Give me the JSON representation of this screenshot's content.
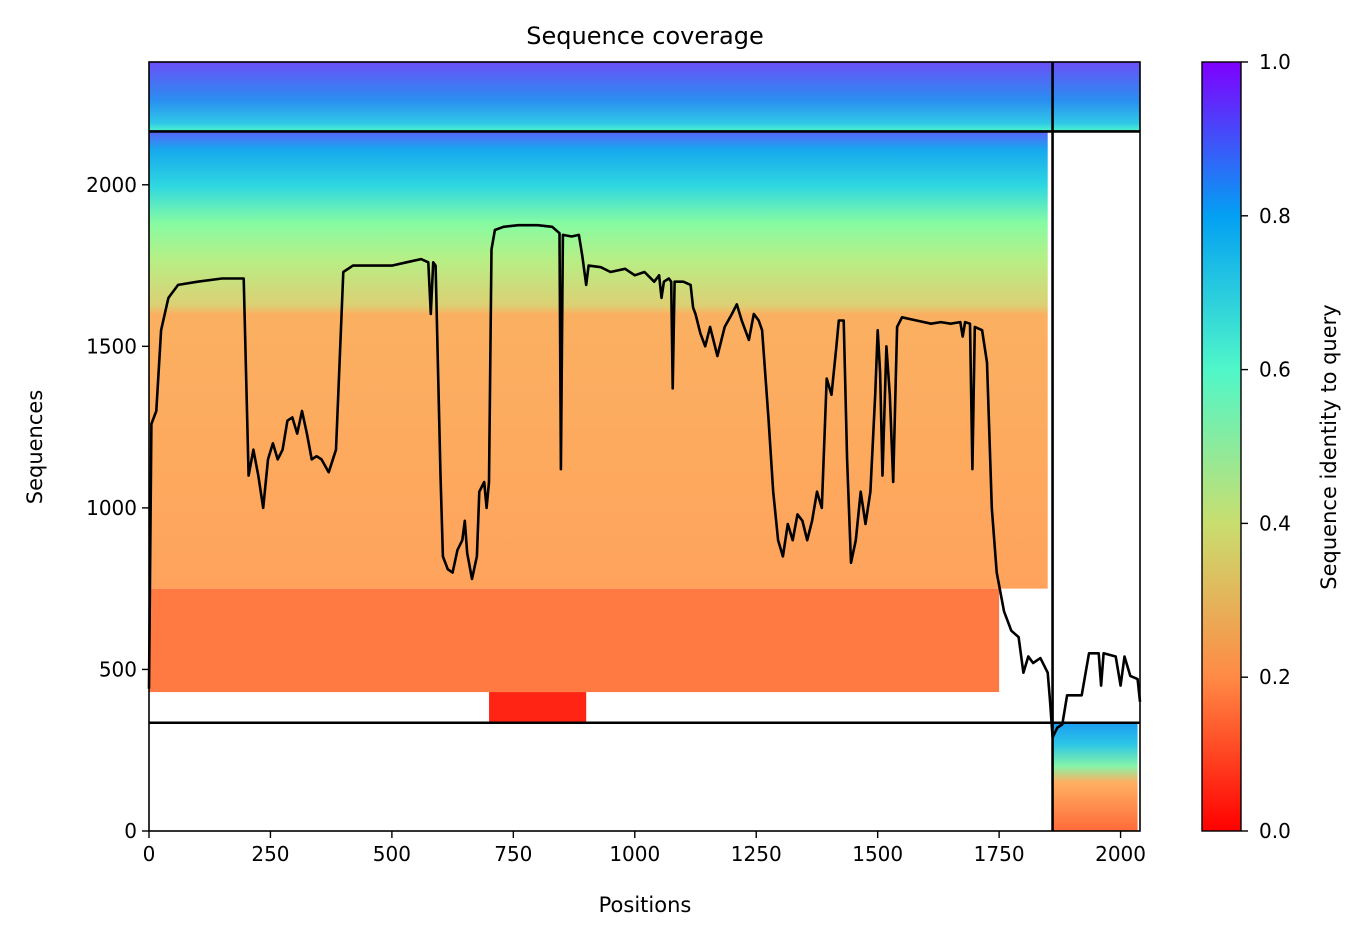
{
  "chart_data": {
    "type": "heatmap",
    "title": "Sequence coverage",
    "xlabel": "Positions",
    "ylabel": "Sequences",
    "xlim": [
      0,
      2040
    ],
    "ylim": [
      0,
      2380
    ],
    "xticks": [
      0,
      250,
      500,
      750,
      1000,
      1250,
      1500,
      1750,
      2000
    ],
    "yticks": [
      0,
      500,
      1000,
      1500,
      2000
    ],
    "grid": false,
    "colorbar": {
      "label": "Sequence identity to query",
      "colormap": "rainbow_r",
      "range": [
        0.0,
        1.0
      ],
      "ticks": [
        "0.0",
        "0.2",
        "0.4",
        "0.6",
        "0.8",
        "1.0"
      ],
      "colors": [
        "#ff0000",
        "#ff8a45",
        "#c9de6f",
        "#4ff7c9",
        "#03a0f3",
        "#7f00ff"
      ]
    },
    "boundaries": {
      "x": 1860,
      "y_low": 335,
      "y_high": 2165
    },
    "coverage_line": [
      [
        0,
        440
      ],
      [
        5,
        1260
      ],
      [
        15,
        1300
      ],
      [
        25,
        1550
      ],
      [
        40,
        1650
      ],
      [
        60,
        1690
      ],
      [
        100,
        1700
      ],
      [
        150,
        1710
      ],
      [
        195,
        1710
      ],
      [
        205,
        1100
      ],
      [
        215,
        1180
      ],
      [
        225,
        1100
      ],
      [
        235,
        1000
      ],
      [
        245,
        1150
      ],
      [
        255,
        1200
      ],
      [
        265,
        1150
      ],
      [
        275,
        1180
      ],
      [
        285,
        1270
      ],
      [
        295,
        1280
      ],
      [
        305,
        1230
      ],
      [
        315,
        1300
      ],
      [
        325,
        1230
      ],
      [
        335,
        1150
      ],
      [
        345,
        1160
      ],
      [
        355,
        1150
      ],
      [
        370,
        1110
      ],
      [
        385,
        1180
      ],
      [
        400,
        1730
      ],
      [
        420,
        1750
      ],
      [
        450,
        1750
      ],
      [
        500,
        1750
      ],
      [
        530,
        1760
      ],
      [
        560,
        1770
      ],
      [
        575,
        1760
      ],
      [
        580,
        1600
      ],
      [
        585,
        1760
      ],
      [
        590,
        1750
      ],
      [
        600,
        1100
      ],
      [
        605,
        850
      ],
      [
        615,
        810
      ],
      [
        625,
        800
      ],
      [
        635,
        870
      ],
      [
        645,
        900
      ],
      [
        650,
        960
      ],
      [
        655,
        860
      ],
      [
        665,
        780
      ],
      [
        675,
        850
      ],
      [
        680,
        1050
      ],
      [
        690,
        1080
      ],
      [
        695,
        1000
      ],
      [
        700,
        1080
      ],
      [
        705,
        1800
      ],
      [
        712,
        1860
      ],
      [
        730,
        1870
      ],
      [
        760,
        1875
      ],
      [
        800,
        1875
      ],
      [
        830,
        1870
      ],
      [
        845,
        1850
      ],
      [
        848,
        1120
      ],
      [
        852,
        1845
      ],
      [
        870,
        1840
      ],
      [
        885,
        1845
      ],
      [
        892,
        1780
      ],
      [
        900,
        1690
      ],
      [
        905,
        1750
      ],
      [
        930,
        1745
      ],
      [
        950,
        1730
      ],
      [
        980,
        1740
      ],
      [
        1000,
        1720
      ],
      [
        1020,
        1730
      ],
      [
        1040,
        1700
      ],
      [
        1050,
        1720
      ],
      [
        1055,
        1650
      ],
      [
        1060,
        1700
      ],
      [
        1070,
        1710
      ],
      [
        1075,
        1700
      ],
      [
        1078,
        1370
      ],
      [
        1082,
        1700
      ],
      [
        1100,
        1700
      ],
      [
        1115,
        1690
      ],
      [
        1120,
        1620
      ],
      [
        1125,
        1600
      ],
      [
        1135,
        1540
      ],
      [
        1145,
        1500
      ],
      [
        1155,
        1560
      ],
      [
        1170,
        1470
      ],
      [
        1185,
        1560
      ],
      [
        1200,
        1600
      ],
      [
        1210,
        1630
      ],
      [
        1220,
        1580
      ],
      [
        1235,
        1520
      ],
      [
        1245,
        1600
      ],
      [
        1255,
        1580
      ],
      [
        1262,
        1550
      ],
      [
        1275,
        1280
      ],
      [
        1285,
        1050
      ],
      [
        1295,
        900
      ],
      [
        1305,
        850
      ],
      [
        1315,
        950
      ],
      [
        1325,
        900
      ],
      [
        1335,
        980
      ],
      [
        1345,
        960
      ],
      [
        1355,
        900
      ],
      [
        1365,
        960
      ],
      [
        1375,
        1050
      ],
      [
        1385,
        1000
      ],
      [
        1395,
        1400
      ],
      [
        1405,
        1350
      ],
      [
        1415,
        1500
      ],
      [
        1420,
        1580
      ],
      [
        1430,
        1580
      ],
      [
        1437,
        1150
      ],
      [
        1445,
        830
      ],
      [
        1455,
        900
      ],
      [
        1465,
        1050
      ],
      [
        1475,
        950
      ],
      [
        1485,
        1050
      ],
      [
        1495,
        1350
      ],
      [
        1500,
        1550
      ],
      [
        1505,
        1420
      ],
      [
        1510,
        1100
      ],
      [
        1518,
        1500
      ],
      [
        1525,
        1350
      ],
      [
        1532,
        1080
      ],
      [
        1540,
        1560
      ],
      [
        1550,
        1590
      ],
      [
        1580,
        1580
      ],
      [
        1610,
        1570
      ],
      [
        1630,
        1575
      ],
      [
        1650,
        1570
      ],
      [
        1670,
        1575
      ],
      [
        1675,
        1530
      ],
      [
        1680,
        1575
      ],
      [
        1690,
        1570
      ],
      [
        1695,
        1120
      ],
      [
        1700,
        1560
      ],
      [
        1715,
        1550
      ],
      [
        1725,
        1450
      ],
      [
        1735,
        1000
      ],
      [
        1745,
        800
      ],
      [
        1760,
        680
      ],
      [
        1775,
        620
      ],
      [
        1790,
        600
      ],
      [
        1800,
        490
      ],
      [
        1810,
        540
      ],
      [
        1820,
        520
      ],
      [
        1835,
        535
      ],
      [
        1850,
        490
      ],
      [
        1855,
        400
      ],
      [
        1860,
        290
      ],
      [
        1870,
        320
      ],
      [
        1880,
        330
      ],
      [
        1890,
        420
      ],
      [
        1910,
        420
      ],
      [
        1920,
        420
      ],
      [
        1935,
        550
      ],
      [
        1955,
        550
      ],
      [
        1960,
        450
      ],
      [
        1965,
        550
      ],
      [
        1990,
        540
      ],
      [
        2000,
        450
      ],
      [
        2008,
        540
      ],
      [
        2020,
        480
      ],
      [
        2035,
        470
      ],
      [
        2040,
        400
      ]
    ]
  }
}
